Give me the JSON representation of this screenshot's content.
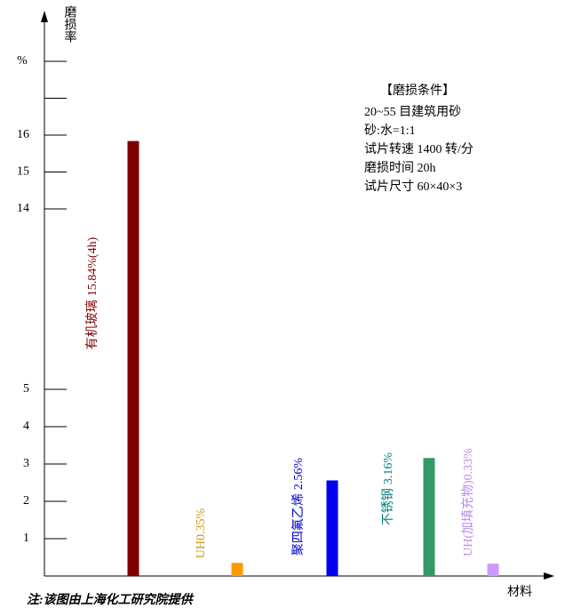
{
  "chart_data": {
    "type": "bar",
    "y_axis_label": "磨损率",
    "y_unit": "%",
    "x_axis_label": "材料",
    "categories": [
      "有机玻璃",
      "UH",
      "聚四氟乙烯",
      "不锈钢",
      "UH(加填充物)"
    ],
    "values": [
      15.84,
      0.35,
      2.56,
      3.16,
      0.33
    ],
    "value_labels": [
      "15.84%(4h)",
      "0.35%",
      "2.56%",
      "3.16%",
      "0.33%"
    ],
    "colors": [
      "#800000",
      "#ff9900",
      "#0000ee",
      "#339966",
      "#cc99ff"
    ],
    "label_colors": [
      "#800000",
      "#cc9900",
      "#0000cc",
      "#008080",
      "#bb88ee"
    ],
    "ylim": [
      0,
      19.3
    ],
    "yticks": [
      1,
      2,
      3,
      4,
      5,
      14,
      15,
      16
    ],
    "minor_yticks": [
      17,
      18
    ],
    "axis_break": [
      5,
      14
    ],
    "annotations": [
      "【磨损条件】",
      "20~55 目建筑用砂",
      "砂:水=1:1",
      "试片转速 1400 转/分",
      "磨损时间 20h",
      "试片尺寸 60×40×3"
    ],
    "note": "注:该图由上海化工研究院提供"
  }
}
